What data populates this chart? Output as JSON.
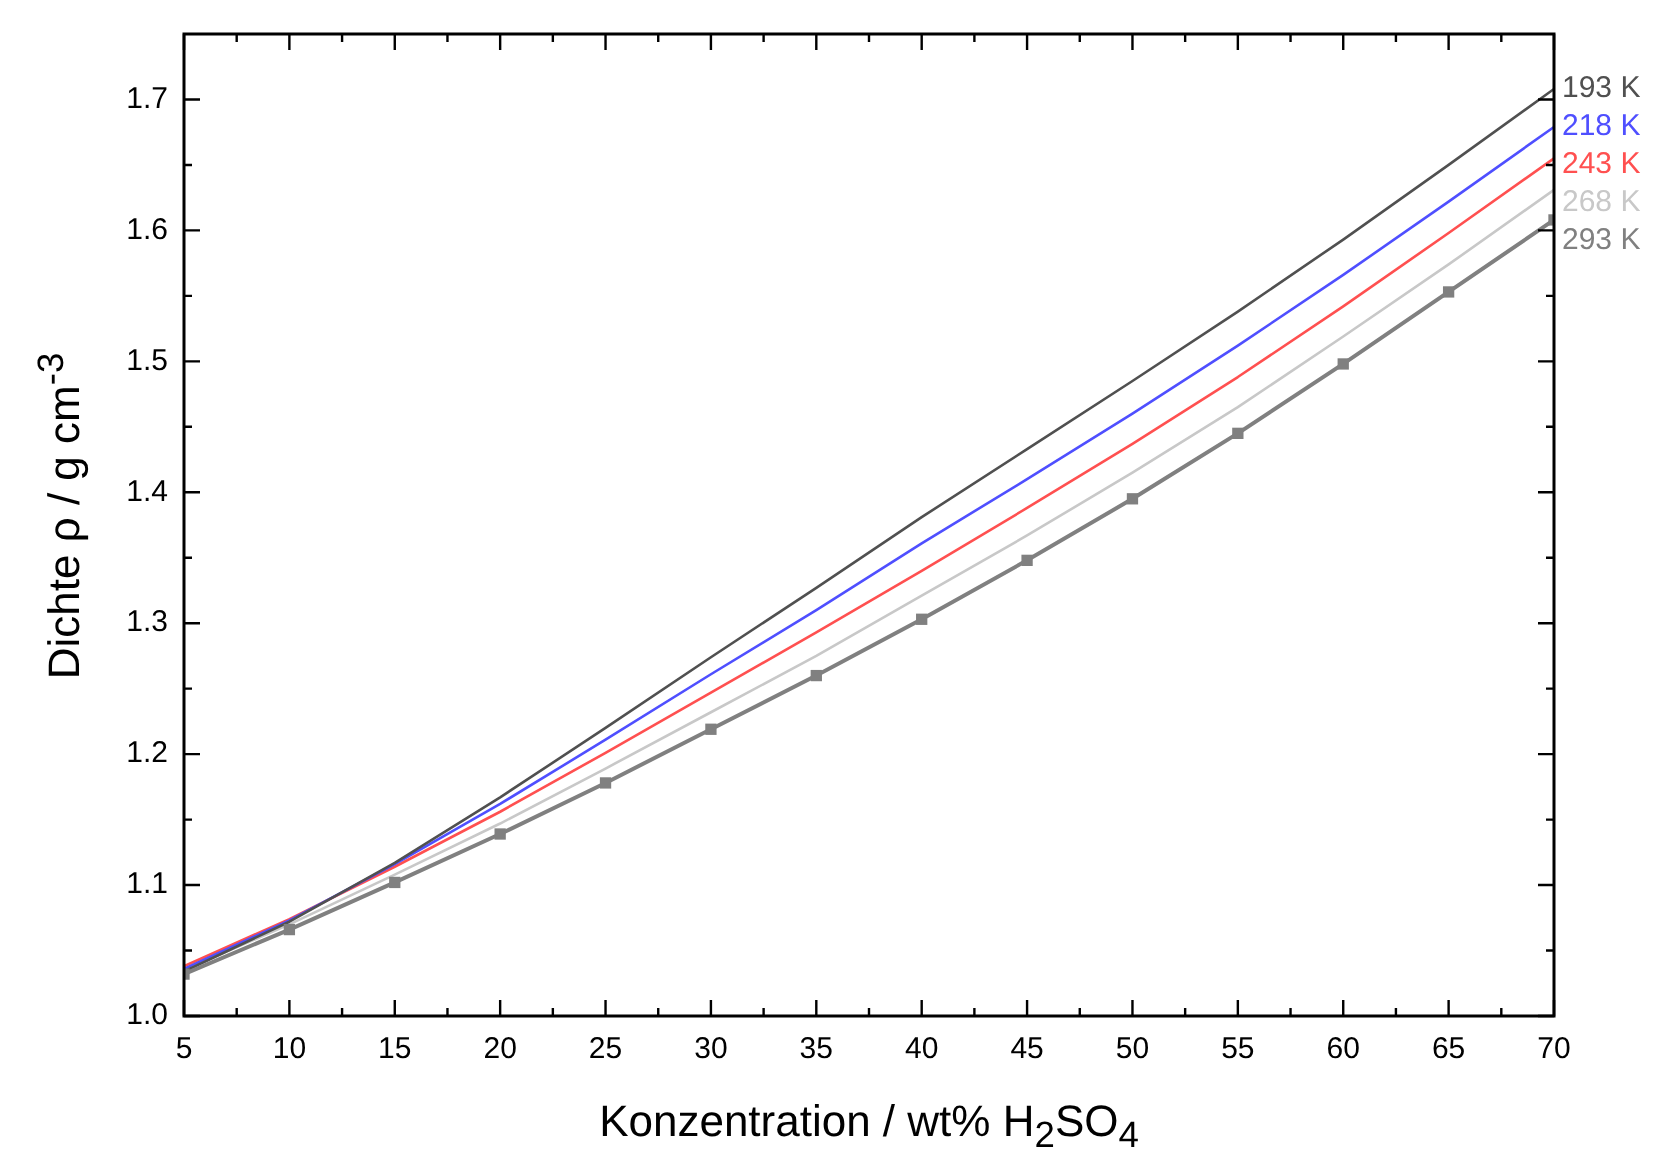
{
  "chart_data": {
    "type": "line",
    "xlabel": "Konzentration / wt% H$_{2}$SO$_{4}$",
    "ylabel": "Dichte ρ / g cm$^{-3}$",
    "x": [
      5,
      10,
      15,
      20,
      25,
      30,
      35,
      40,
      45,
      50,
      55,
      60,
      65,
      70
    ],
    "series": [
      {
        "name": "193 K",
        "color": "#505050",
        "marker": "none",
        "values": [
          1.034,
          1.072,
          1.117,
          1.167,
          1.22,
          1.274,
          1.327,
          1.381,
          1.433,
          1.485,
          1.538,
          1.593,
          1.65,
          1.708
        ]
      },
      {
        "name": "218 K",
        "color": "#4f4fff",
        "marker": "none",
        "values": [
          1.036,
          1.073,
          1.116,
          1.162,
          1.211,
          1.261,
          1.31,
          1.361,
          1.41,
          1.46,
          1.512,
          1.566,
          1.622,
          1.679
        ]
      },
      {
        "name": "243 K",
        "color": "#ff5050",
        "marker": "none",
        "values": [
          1.038,
          1.074,
          1.114,
          1.156,
          1.201,
          1.247,
          1.293,
          1.34,
          1.388,
          1.437,
          1.488,
          1.542,
          1.598,
          1.655
        ]
      },
      {
        "name": "268 K",
        "color": "#c8c8c8",
        "marker": "none",
        "values": [
          1.035,
          1.07,
          1.108,
          1.147,
          1.189,
          1.232,
          1.275,
          1.321,
          1.367,
          1.415,
          1.465,
          1.519,
          1.574,
          1.631
        ]
      },
      {
        "name": "293 K",
        "color": "#808080",
        "marker": "square",
        "values": [
          1.032,
          1.066,
          1.102,
          1.139,
          1.178,
          1.219,
          1.26,
          1.303,
          1.348,
          1.395,
          1.445,
          1.498,
          1.553,
          1.608
        ]
      }
    ],
    "xlim": [
      5,
      70
    ],
    "xticks": [
      5,
      {
        "value": 7.5,
        "label": null
      },
      10,
      {
        "value": 12.5,
        "label": null
      },
      15,
      {
        "value": 17.5,
        "label": null
      },
      20,
      {
        "value": 22.5,
        "label": null
      },
      25,
      {
        "value": 27.5,
        "label": null
      },
      30,
      {
        "value": 32.5,
        "label": null
      },
      35,
      {
        "value": 37.5,
        "label": null
      },
      40,
      {
        "value": 42.5,
        "label": null
      },
      45,
      {
        "value": 47.5,
        "label": null
      },
      50,
      {
        "value": 52.5,
        "label": null
      },
      55,
      {
        "value": 57.5,
        "label": null
      },
      60,
      {
        "value": 62.5,
        "label": null
      },
      65,
      {
        "value": 67.5,
        "label": null
      },
      70
    ],
    "ylim": [
      1.0,
      1.75
    ],
    "yticks": [
      {
        "value": 1,
        "label": "1.0"
      },
      {
        "value": 1.05,
        "label": null
      },
      1.1,
      {
        "value": 1.15,
        "label": null
      },
      1.2,
      {
        "value": 1.25,
        "label": null
      },
      1.3,
      {
        "value": 1.35,
        "label": null
      },
      1.4,
      {
        "value": 1.45,
        "label": null
      },
      1.5,
      {
        "value": 1.55,
        "label": null
      },
      1.6,
      {
        "value": 1.65,
        "label": null
      },
      1.7
    ],
    "grid": false,
    "line_style": "solid"
  }
}
